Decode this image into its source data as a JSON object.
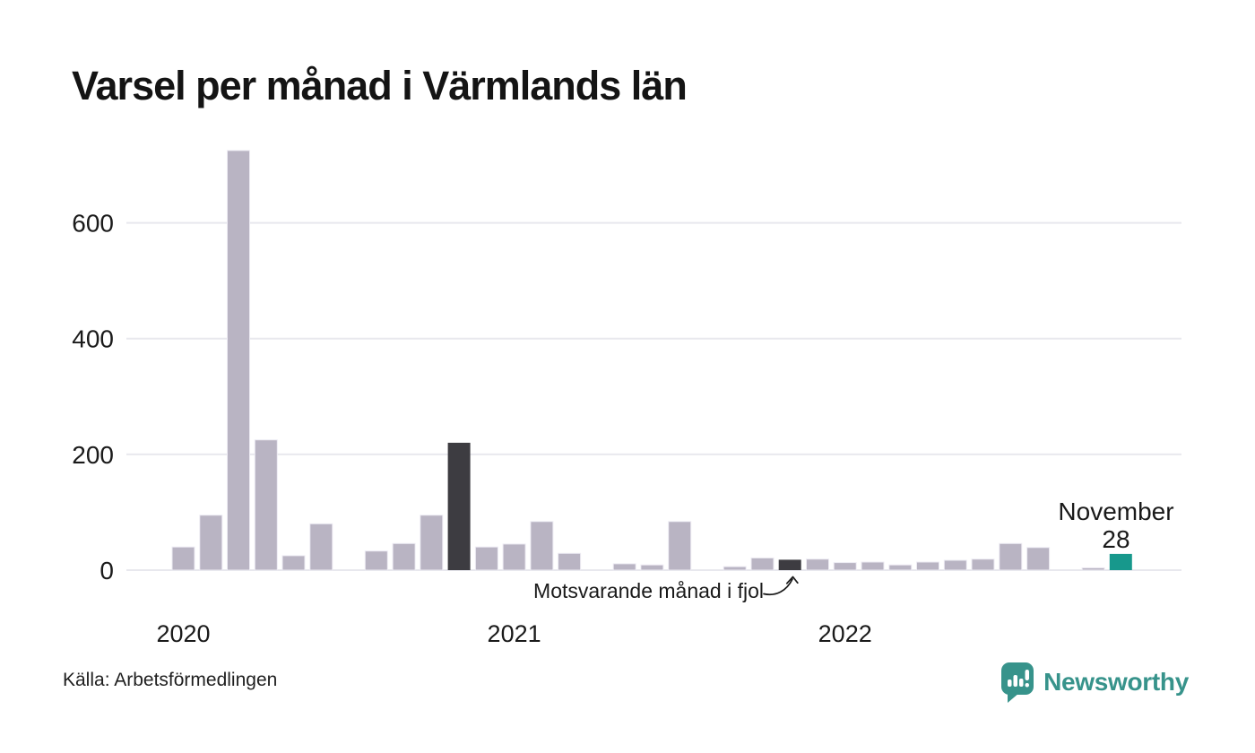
{
  "title": "Varsel per månad i Värmlands län",
  "source": {
    "text": "Källa: Arbetsförmedlingen"
  },
  "logo": {
    "text": "Newsworthy",
    "icon": "newsworthy-speech-bubble-bar-chart-icon"
  },
  "annotation": {
    "text": "Motsvarande månad i fjol",
    "points_to": "2021-11"
  },
  "highlight_label": {
    "month": "November",
    "value": "28"
  },
  "colors": {
    "bar": "#b9b4c3",
    "bar_outline": "#edebf3",
    "bar_last_year": "#3d3c41",
    "bar_current": "#17988c",
    "gridline": "#e8e8ee",
    "text": "#1a1a1a",
    "logo_teal": "#37938b"
  },
  "chart_data": {
    "type": "bar",
    "title": "Varsel per månad i Värmlands län",
    "x": [
      "2020-01",
      "2020-02",
      "2020-03",
      "2020-04",
      "2020-05",
      "2020-06",
      "2020-07",
      "2020-08",
      "2020-09",
      "2020-10",
      "2020-11",
      "2020-12",
      "2021-01",
      "2021-02",
      "2021-03",
      "2021-04",
      "2021-05",
      "2021-06",
      "2021-07",
      "2021-08",
      "2021-09",
      "2021-10",
      "2021-11",
      "2021-12",
      "2022-01",
      "2022-02",
      "2022-03",
      "2022-04",
      "2022-05",
      "2022-06",
      "2022-07",
      "2022-08",
      "2022-09",
      "2022-10",
      "2022-11"
    ],
    "values": [
      40,
      95,
      725,
      225,
      25,
      80,
      0,
      33,
      46,
      95,
      220,
      40,
      45,
      84,
      29,
      0,
      11,
      9,
      84,
      0,
      6,
      21,
      18,
      19,
      13,
      14,
      9,
      14,
      17,
      19,
      46,
      39,
      0,
      4,
      28
    ],
    "ylabel": "",
    "yticks": [
      0,
      200,
      400,
      600
    ],
    "ylim": [
      0,
      760
    ],
    "grid": true,
    "legend": "none",
    "year_ticks": [
      {
        "label": "2020",
        "month_index": 0
      },
      {
        "label": "2021",
        "month_index": 12
      },
      {
        "label": "2022",
        "month_index": 24
      }
    ],
    "highlight_dark": [
      "2020-11",
      "2021-11"
    ],
    "highlight_current": [
      "2022-11"
    ]
  }
}
